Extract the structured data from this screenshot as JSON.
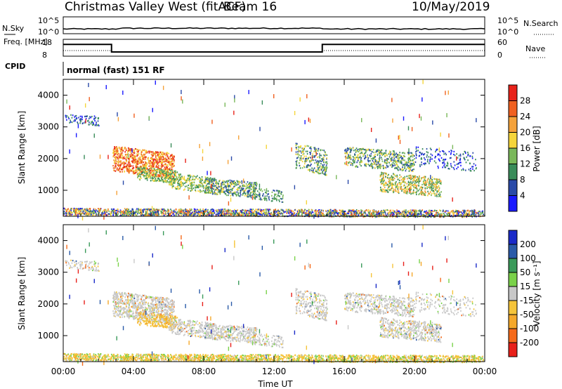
{
  "header": {
    "site": "Christmas Valley West (fitACF)",
    "beam": "Beam 16",
    "date": "10/May/2019"
  },
  "nsky_panel": {
    "label": "N.Sky",
    "y_ticks": [
      "10^5",
      "10^0"
    ],
    "right_label": "N.Search",
    "right_ticks": [
      "10^5",
      "10^0"
    ]
  },
  "freq_panel": {
    "label": "Freq. [MHz]",
    "y_ticks": [
      "18",
      "8"
    ],
    "right_label": "Nave",
    "right_ticks": [
      "60",
      "0"
    ]
  },
  "cpid": {
    "label": "CPID",
    "text": "normal (fast) 151 RF"
  },
  "colors": {
    "power": [
      "#1a1aff",
      "#2a4aa8",
      "#3a8c5a",
      "#7ab85a",
      "#f5d53a",
      "#f5a23a",
      "#f06020",
      "#e8221a"
    ],
    "velocity": [
      "#e8201a",
      "#f56a1a",
      "#f5a82a",
      "#f5c43a",
      "#c8c8c8",
      "#7ad24a",
      "#3a9a5a",
      "#2a5aa8",
      "#1a2ac8"
    ],
    "ground": "#c8c8c8"
  },
  "chart_data": [
    {
      "type": "heatmap",
      "panel": "power",
      "ylabel": "Slant Range [km]",
      "xlabel": "",
      "x_ticks": [
        "00:00",
        "04:00",
        "08:00",
        "12:00",
        "16:00",
        "20:00",
        "00:00"
      ],
      "y_ticks": [
        "1000",
        "2000",
        "3000",
        "4000"
      ],
      "ylim": [
        180,
        4500
      ],
      "xlim": [
        0,
        24
      ],
      "colorbar": {
        "label": "Power [dB]",
        "ticks": [
          "4",
          "8",
          "12",
          "16",
          "20",
          "24",
          "28"
        ],
        "range": [
          0,
          30
        ]
      }
    },
    {
      "type": "heatmap",
      "panel": "velocity",
      "ylabel": "Slant Range [km]",
      "xlabel": "Time UT",
      "x_ticks": [
        "00:00",
        "04:00",
        "08:00",
        "12:00",
        "16:00",
        "20:00",
        "00:00"
      ],
      "y_ticks": [
        "1000",
        "2000",
        "3000",
        "4000"
      ],
      "ylim": [
        180,
        4500
      ],
      "xlim": [
        0,
        24
      ],
      "colorbar": {
        "label": "Velocity [m s⁻¹]",
        "ticks": [
          "200",
          "100",
          "50",
          "15",
          "-15",
          "-50",
          "-100",
          "-200"
        ]
      }
    },
    {
      "type": "line",
      "panel": "frequency",
      "x": [
        0,
        2.75,
        2.75,
        14.75,
        14.75,
        24
      ],
      "freq_mhz": [
        15.0,
        15.0,
        10.5,
        10.5,
        15.0,
        15.0
      ],
      "nave_x": [
        0,
        2.75,
        2.75,
        14.75,
        14.75,
        24
      ],
      "nave": [
        20,
        20,
        15,
        15,
        20,
        20
      ]
    }
  ]
}
